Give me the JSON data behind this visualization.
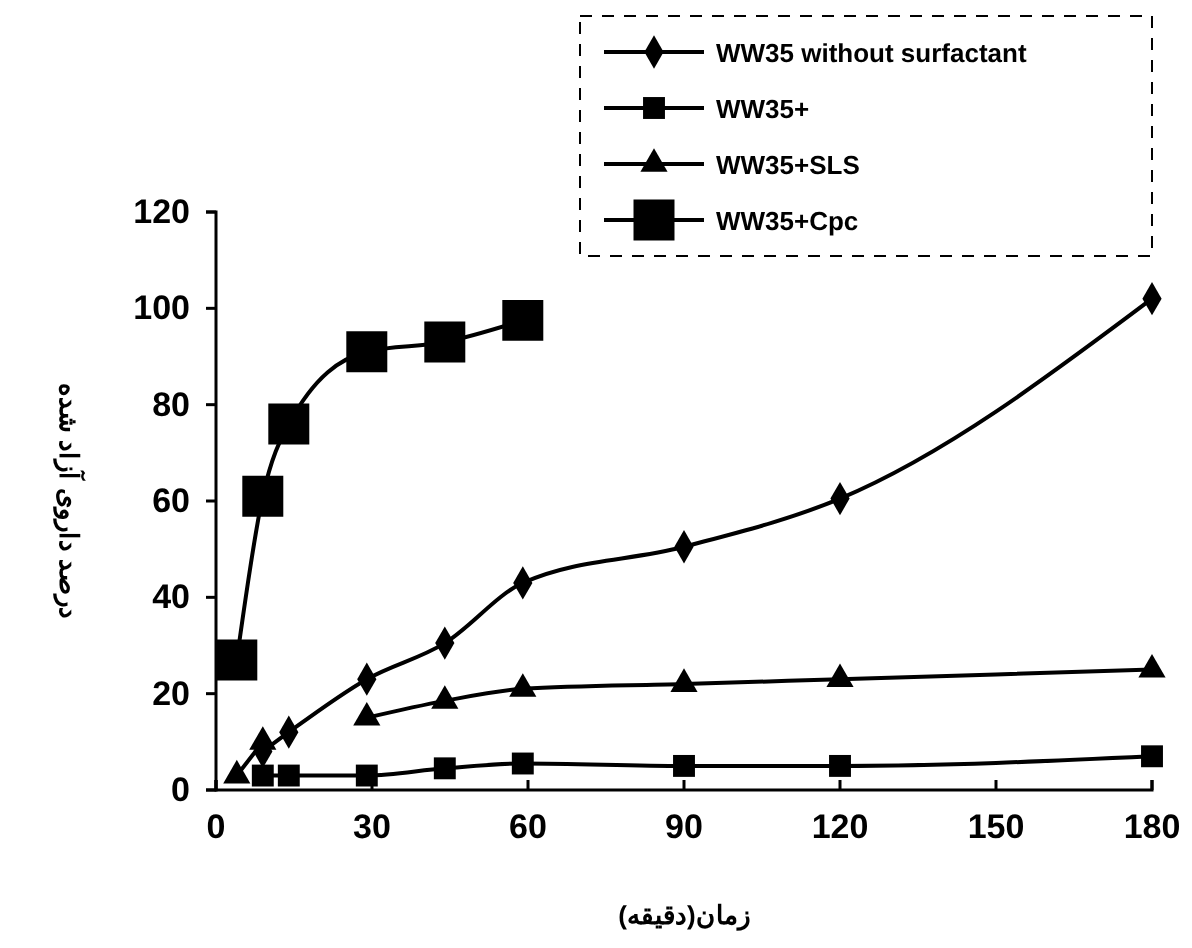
{
  "chart_data": {
    "type": "line",
    "xlabel": "زمان(دقیقه)",
    "ylabel": "درصد داروی آزاد شده",
    "x": [
      4,
      9,
      14,
      29,
      44,
      59,
      90,
      120,
      180
    ],
    "series": [
      {
        "name": "WW35 without surfactant",
        "color": "#000000",
        "marker": "diamond",
        "values": [
          null,
          8,
          12,
          23,
          30.5,
          43,
          50.5,
          60.5,
          102
        ]
      },
      {
        "name": "WW35+",
        "color": "#000000",
        "marker": "square",
        "values": [
          null,
          3,
          3,
          3,
          4.5,
          5.5,
          5,
          5,
          7
        ]
      },
      {
        "name": "WW35+SLS",
        "color": "#000000",
        "marker": "triangle",
        "values": [
          3,
          10,
          null,
          15,
          18.5,
          21,
          22,
          23,
          25
        ]
      },
      {
        "name": "WW35+Cpc",
        "color": "#000000",
        "marker": "square",
        "x": [
          4,
          9,
          14,
          29,
          44,
          59
        ],
        "values": [
          27,
          61,
          76,
          91,
          93,
          97.5
        ]
      }
    ],
    "xlim": [
      0,
      180
    ],
    "xticks": [
      0,
      30,
      60,
      90,
      120,
      150,
      180
    ],
    "ylim": [
      0,
      120
    ],
    "yticks": [
      0,
      20,
      40,
      60,
      80,
      100,
      120
    ],
    "legend": "top right",
    "grid": false,
    "line_style": "solid"
  }
}
